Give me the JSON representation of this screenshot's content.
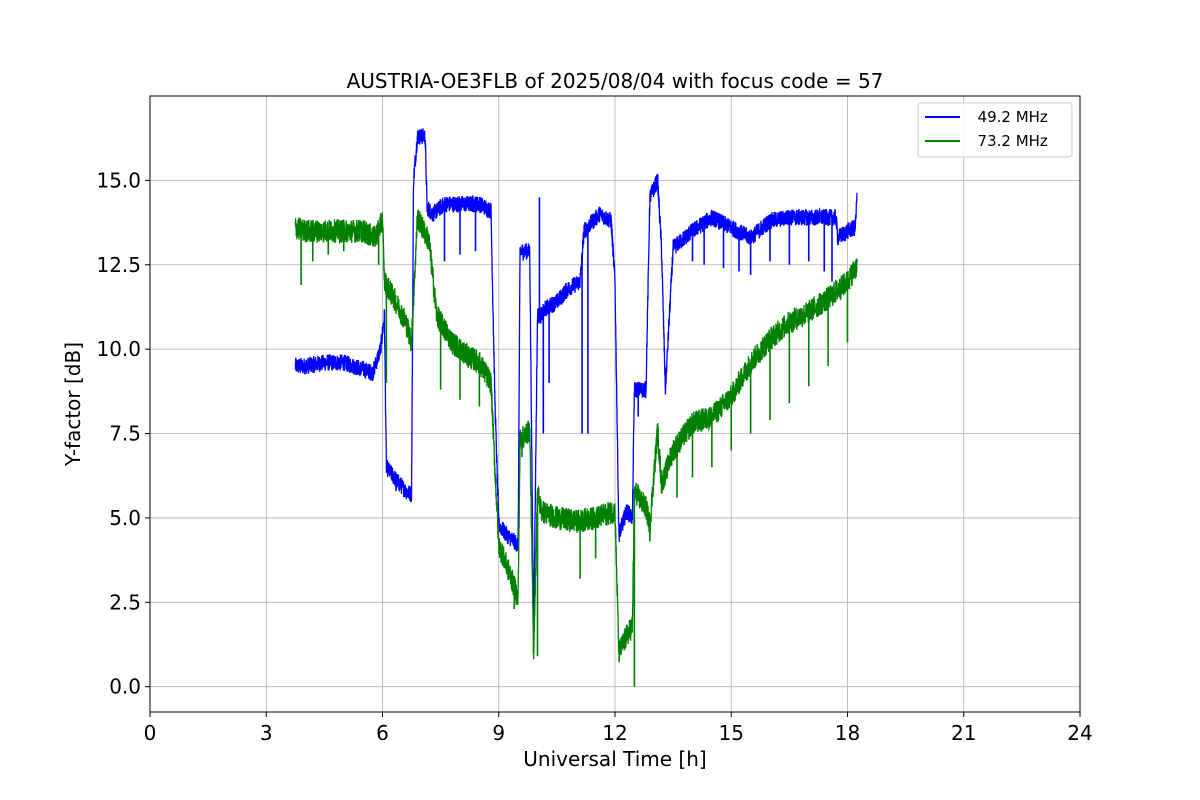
{
  "chart_data": {
    "type": "line",
    "title": "AUSTRIA-OE3FLB of 2025/08/04 with focus code = 57",
    "xlabel": "Universal Time [h]",
    "ylabel": "Y-factor [dB]",
    "xlim": [
      0,
      24
    ],
    "ylim": [
      -0.75,
      17.5
    ],
    "xticks": [
      "0",
      "3",
      "6",
      "9",
      "12",
      "15",
      "18",
      "21",
      "24"
    ],
    "yticks": [
      "0.0",
      "2.5",
      "5.0",
      "7.5",
      "10.0",
      "12.5",
      "15.0"
    ],
    "grid": true,
    "legend_position": "top-right",
    "series": [
      {
        "name": "  49.2 MHz",
        "color": "#0000ff",
        "noise": 0.25,
        "x": [
          3.75,
          4.0,
          4.5,
          5.0,
          5.5,
          5.75,
          5.95,
          6.05,
          6.1,
          6.3,
          6.6,
          6.75,
          6.8,
          6.9,
          7.1,
          7.15,
          7.3,
          7.6,
          8.0,
          8.5,
          8.8,
          8.9,
          9.0,
          9.2,
          9.5,
          9.55,
          9.8,
          9.9,
          10.0,
          10.1,
          10.2,
          10.5,
          10.8,
          11.1,
          11.2,
          11.6,
          11.9,
          12.0,
          12.1,
          12.3,
          12.45,
          12.5,
          12.8,
          12.9,
          13.1,
          13.2,
          13.3,
          13.5,
          14.0,
          14.5,
          15.0,
          15.5,
          16.0,
          16.5,
          17.0,
          17.5,
          17.7,
          17.75,
          18.0,
          18.2,
          18.25
        ],
        "y": [
          9.5,
          9.5,
          9.6,
          9.6,
          9.4,
          9.3,
          10.0,
          11.0,
          6.5,
          6.2,
          5.8,
          5.7,
          15.0,
          16.3,
          16.3,
          14.2,
          14.0,
          14.3,
          14.3,
          14.3,
          14.1,
          8.5,
          4.8,
          4.5,
          4.2,
          12.9,
          12.9,
          1.5,
          11.0,
          11.0,
          11.2,
          11.4,
          11.8,
          12.0,
          13.5,
          14.0,
          13.8,
          12.0,
          4.5,
          5.2,
          5.0,
          8.8,
          8.8,
          14.5,
          15.0,
          13.0,
          8.8,
          13.0,
          13.5,
          13.9,
          13.6,
          13.3,
          13.8,
          13.9,
          13.9,
          13.9,
          13.9,
          13.3,
          13.5,
          13.6,
          14.6
        ],
        "spikes": [
          [
            6.35,
            5.8
          ],
          [
            7.6,
            12.6
          ],
          [
            8.0,
            12.8
          ],
          [
            8.4,
            12.9
          ],
          [
            9.9,
            1.0
          ],
          [
            10.05,
            14.5
          ],
          [
            10.15,
            7.5
          ],
          [
            10.3,
            9.0
          ],
          [
            11.15,
            7.5
          ],
          [
            11.3,
            7.5
          ],
          [
            12.6,
            8.0
          ],
          [
            14.0,
            12.6
          ],
          [
            14.3,
            12.5
          ],
          [
            14.8,
            12.4
          ],
          [
            15.2,
            12.3
          ],
          [
            15.5,
            12.2
          ],
          [
            16.0,
            12.6
          ],
          [
            16.5,
            12.5
          ],
          [
            17.0,
            12.6
          ],
          [
            17.4,
            12.3
          ],
          [
            17.6,
            12.0
          ]
        ]
      },
      {
        "name": "  73.2 MHz",
        "color": "#008000",
        "noise": 0.35,
        "x": [
          3.75,
          4.0,
          4.5,
          5.0,
          5.5,
          5.8,
          6.0,
          6.05,
          6.3,
          6.6,
          6.75,
          6.9,
          7.2,
          7.4,
          7.8,
          8.2,
          8.5,
          8.8,
          8.9,
          9.0,
          9.3,
          9.5,
          9.55,
          9.8,
          9.9,
          10.0,
          10.1,
          10.5,
          11.0,
          11.5,
          12.0,
          12.1,
          12.3,
          12.45,
          12.5,
          12.8,
          12.9,
          13.1,
          13.2,
          13.5,
          14.0,
          14.5,
          15.0,
          15.5,
          16.0,
          16.5,
          17.0,
          17.5,
          18.0,
          18.25
        ],
        "y": [
          13.6,
          13.5,
          13.5,
          13.5,
          13.5,
          13.3,
          13.8,
          12.0,
          11.5,
          10.8,
          10.2,
          13.9,
          13.2,
          11.0,
          10.2,
          9.8,
          9.6,
          9.0,
          6.5,
          4.2,
          3.3,
          2.6,
          7.3,
          7.6,
          1.0,
          5.8,
          5.2,
          5.0,
          4.9,
          5.0,
          5.2,
          1.0,
          1.5,
          1.8,
          5.8,
          5.3,
          4.8,
          7.6,
          6.0,
          7.0,
          7.8,
          8.0,
          8.6,
          9.6,
          10.3,
          10.8,
          11.1,
          11.5,
          12.0,
          12.5
        ],
        "spikes": [
          [
            3.9,
            11.9
          ],
          [
            4.2,
            12.6
          ],
          [
            4.6,
            12.8
          ],
          [
            5.0,
            12.9
          ],
          [
            5.9,
            12.5
          ],
          [
            6.1,
            9.0
          ],
          [
            7.5,
            8.8
          ],
          [
            8.0,
            8.5
          ],
          [
            8.5,
            8.3
          ],
          [
            9.4,
            2.3
          ],
          [
            9.6,
            6.8
          ],
          [
            10.0,
            0.9
          ],
          [
            11.1,
            3.2
          ],
          [
            11.5,
            3.8
          ],
          [
            12.5,
            0.0
          ],
          [
            12.9,
            4.3
          ],
          [
            13.6,
            5.6
          ],
          [
            14.0,
            6.2
          ],
          [
            14.5,
            6.5
          ],
          [
            15.0,
            7.0
          ],
          [
            15.5,
            7.5
          ],
          [
            16.0,
            7.9
          ],
          [
            16.5,
            8.4
          ],
          [
            17.0,
            8.9
          ],
          [
            17.5,
            9.5
          ],
          [
            18.0,
            10.2
          ]
        ]
      }
    ]
  }
}
